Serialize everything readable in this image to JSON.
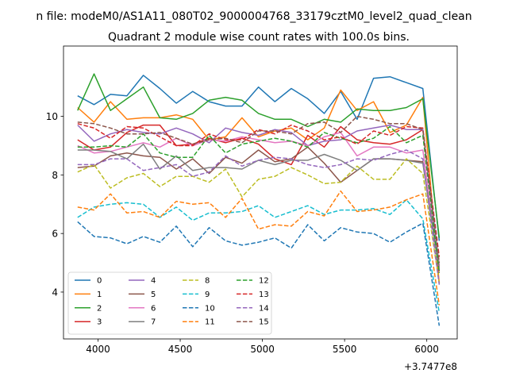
{
  "figure": {
    "suptitle": "n file: modeM0/AS1A11_080T02_9000004768_33179cztM0_level2_quad_clean"
  },
  "chart_data": {
    "type": "line",
    "title": "Quadrant 2 module wise count rates with 100.0s bins.",
    "xlabel": "",
    "ylabel": "",
    "x_offset_label": "+3.7477e8",
    "x_offset": 374770000,
    "xlim": [
      3790,
      6185
    ],
    "ylim": [
      2.4,
      12.4
    ],
    "xticks": [
      4000,
      4500,
      5000,
      5500,
      6000
    ],
    "yticks": [
      4,
      6,
      8,
      10
    ],
    "x": [
      3876,
      3976,
      4076,
      4176,
      4276,
      4376,
      4476,
      4576,
      4676,
      4776,
      4876,
      4976,
      5076,
      5176,
      5276,
      5376,
      5476,
      5576,
      5676,
      5776,
      5876,
      5976,
      6076
    ],
    "legend": {
      "location": "lower left",
      "ncol": 4
    },
    "series": [
      {
        "name": "0",
        "color": "#1f77b4",
        "dash": "solid",
        "values": [
          10.7,
          10.4,
          10.75,
          10.7,
          11.4,
          10.95,
          10.45,
          10.85,
          10.5,
          10.35,
          10.35,
          11.0,
          10.5,
          10.95,
          10.6,
          10.1,
          10.85,
          9.9,
          11.3,
          11.35,
          11.15,
          10.95,
          5.75
        ]
      },
      {
        "name": "1",
        "color": "#ff7f0e",
        "dash": "solid",
        "values": [
          10.3,
          9.8,
          10.5,
          9.9,
          9.95,
          9.95,
          10.05,
          9.9,
          9.2,
          9.3,
          9.95,
          9.3,
          9.5,
          9.6,
          9.2,
          9.6,
          10.9,
          10.2,
          10.5,
          9.45,
          9.7,
          10.65,
          4.3
        ]
      },
      {
        "name": "2",
        "color": "#2ca02c",
        "dash": "solid",
        "values": [
          10.2,
          11.45,
          10.2,
          10.6,
          11.0,
          9.95,
          9.9,
          10.1,
          10.55,
          10.65,
          10.55,
          10.1,
          9.9,
          9.9,
          9.65,
          9.9,
          9.8,
          10.25,
          10.2,
          10.2,
          10.3,
          10.6,
          5.85
        ]
      },
      {
        "name": "3",
        "color": "#d62728",
        "dash": "solid",
        "values": [
          9.2,
          8.85,
          8.95,
          9.45,
          9.7,
          9.7,
          9.0,
          9.05,
          9.25,
          9.1,
          9.25,
          9.05,
          8.55,
          8.35,
          9.35,
          8.95,
          9.65,
          9.2,
          9.1,
          9.05,
          9.2,
          9.55,
          4.9
        ]
      },
      {
        "name": "4",
        "color": "#9467bd",
        "dash": "solid",
        "values": [
          9.7,
          9.15,
          9.4,
          9.55,
          9.45,
          9.4,
          9.6,
          9.4,
          9.1,
          9.6,
          9.45,
          9.35,
          9.55,
          9.45,
          9.0,
          9.15,
          9.2,
          9.5,
          9.6,
          9.7,
          9.55,
          9.55,
          4.85
        ]
      },
      {
        "name": "5",
        "color": "#8c564b",
        "dash": "solid",
        "values": [
          8.25,
          8.3,
          8.65,
          8.75,
          8.65,
          8.6,
          8.2,
          8.55,
          8.05,
          8.6,
          8.4,
          8.85,
          8.45,
          8.55,
          8.95,
          8.4,
          7.75,
          8.15,
          8.55,
          8.55,
          8.5,
          8.45,
          4.7
        ]
      },
      {
        "name": "6",
        "color": "#e377c2",
        "dash": "solid",
        "values": [
          9.0,
          8.75,
          8.8,
          8.95,
          9.1,
          8.95,
          9.25,
          9.0,
          9.2,
          9.15,
          9.3,
          9.2,
          9.1,
          9.15,
          9.0,
          9.3,
          9.45,
          8.65,
          8.95,
          8.95,
          8.75,
          8.85,
          4.8
        ]
      },
      {
        "name": "7",
        "color": "#7f7f7f",
        "dash": "solid",
        "values": [
          8.85,
          8.85,
          8.8,
          8.55,
          9.05,
          8.2,
          8.65,
          8.15,
          8.25,
          8.25,
          8.2,
          8.5,
          8.35,
          8.5,
          8.5,
          8.7,
          8.5,
          8.15,
          8.55,
          8.55,
          8.5,
          8.4,
          4.75
        ]
      },
      {
        "name": "8",
        "color": "#bcbd22",
        "dash": "dashed",
        "values": [
          8.1,
          8.35,
          7.55,
          7.9,
          8.05,
          7.6,
          7.95,
          7.95,
          7.75,
          8.2,
          7.25,
          7.85,
          7.95,
          8.25,
          8.0,
          7.7,
          7.75,
          8.3,
          7.85,
          7.85,
          8.55,
          8.05,
          4.3
        ]
      },
      {
        "name": "9",
        "color": "#17becf",
        "dash": "dashed",
        "values": [
          6.55,
          6.9,
          7.0,
          7.05,
          7.0,
          6.55,
          6.9,
          6.45,
          6.7,
          6.7,
          6.75,
          6.95,
          6.55,
          6.75,
          6.95,
          6.65,
          6.8,
          6.8,
          6.85,
          6.65,
          7.15,
          6.5,
          3.3
        ]
      },
      {
        "name": "10",
        "color": "#1f77b4",
        "dash": "dashed",
        "values": [
          6.4,
          5.9,
          5.85,
          5.65,
          5.9,
          5.7,
          6.25,
          5.55,
          6.2,
          5.75,
          5.6,
          5.7,
          5.85,
          5.5,
          6.3,
          5.75,
          6.2,
          6.05,
          6.0,
          5.7,
          6.05,
          6.35,
          2.85
        ]
      },
      {
        "name": "11",
        "color": "#ff7f0e",
        "dash": "dashed",
        "values": [
          6.9,
          6.8,
          7.35,
          6.7,
          6.75,
          6.55,
          7.1,
          7.0,
          7.05,
          6.55,
          7.2,
          6.15,
          6.3,
          6.25,
          6.75,
          6.6,
          7.45,
          6.75,
          6.8,
          6.9,
          7.15,
          7.35,
          3.55
        ]
      },
      {
        "name": "12",
        "color": "#2ca02c",
        "dash": "dashed",
        "values": [
          8.95,
          8.95,
          9.0,
          8.95,
          9.4,
          8.75,
          8.6,
          8.6,
          9.35,
          8.75,
          9.05,
          9.15,
          9.25,
          9.15,
          8.95,
          9.45,
          9.25,
          9.1,
          9.25,
          9.65,
          9.1,
          9.35,
          4.65
        ]
      },
      {
        "name": "13",
        "color": "#d62728",
        "dash": "dashed",
        "values": [
          9.75,
          9.6,
          9.25,
          9.65,
          9.6,
          9.3,
          9.0,
          9.0,
          9.4,
          9.2,
          9.2,
          9.55,
          9.4,
          9.7,
          9.5,
          9.2,
          9.3,
          9.05,
          9.5,
          9.35,
          9.65,
          9.6,
          5.2
        ]
      },
      {
        "name": "14",
        "color": "#9467bd",
        "dash": "dashed",
        "values": [
          8.35,
          8.35,
          8.55,
          8.55,
          8.15,
          8.25,
          8.35,
          7.95,
          8.1,
          8.65,
          8.3,
          8.5,
          8.6,
          8.55,
          8.35,
          8.25,
          8.35,
          8.55,
          8.5,
          8.7,
          8.85,
          8.55,
          4.25
        ]
      },
      {
        "name": "15",
        "color": "#8c564b",
        "dash": "dashed",
        "values": [
          9.8,
          9.75,
          9.6,
          9.4,
          9.4,
          9.45,
          9.25,
          9.05,
          9.2,
          9.25,
          9.1,
          9.5,
          9.5,
          9.4,
          9.75,
          9.8,
          9.45,
          10.0,
          9.9,
          9.75,
          9.75,
          9.55,
          5.0
        ]
      }
    ]
  }
}
